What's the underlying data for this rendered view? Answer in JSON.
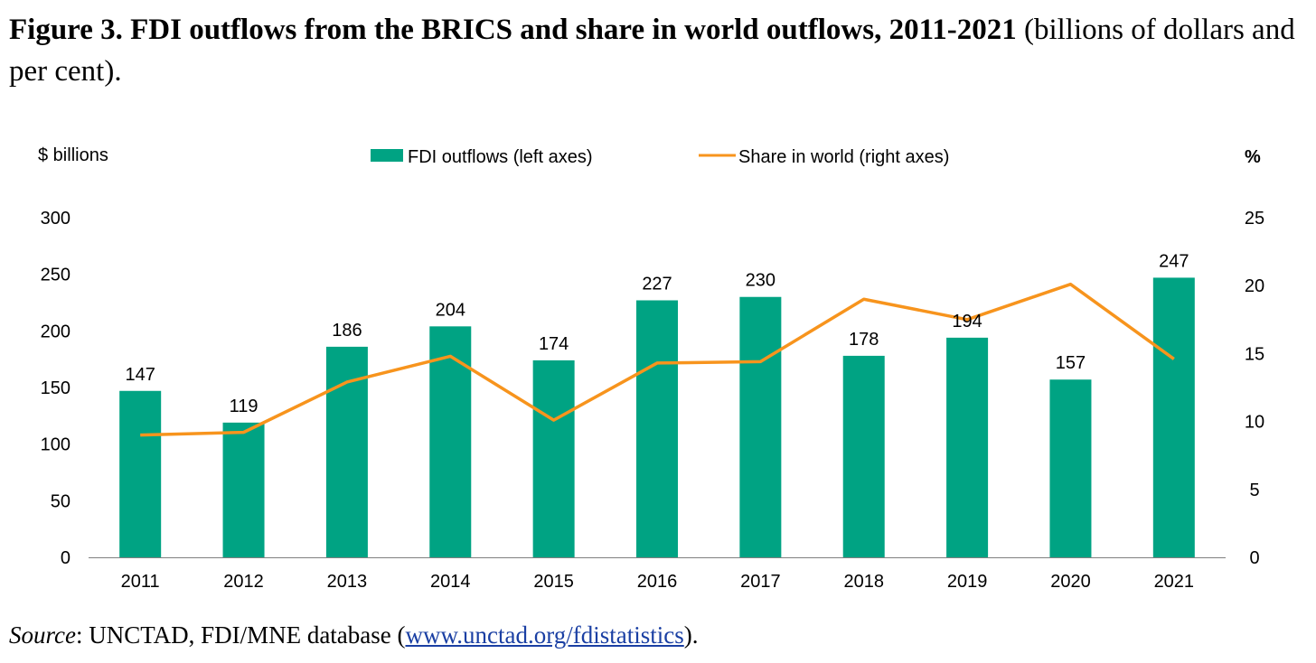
{
  "figure": {
    "title_bold": "Figure 3. FDI outflows from the BRICS and share in world outflows, 2011-2021",
    "title_rest": "(billions of dollars and per cent)."
  },
  "source": {
    "label": "Source",
    "text": ": UNCTAD, FDI/MNE database (",
    "link": "www.unctad.org/fdistatistics",
    "end": ")."
  },
  "colors": {
    "bars": "#00a383",
    "line": "#f7941d",
    "axis": "#808080"
  },
  "chart_data": {
    "type": "bar",
    "categories": [
      "2011",
      "2012",
      "2013",
      "2014",
      "2015",
      "2016",
      "2017",
      "2018",
      "2019",
      "2020",
      "2021"
    ],
    "series": [
      {
        "name": "FDI outflows (left axes)",
        "type": "bar",
        "axis": "left",
        "values": [
          147,
          119,
          186,
          204,
          174,
          227,
          230,
          178,
          194,
          157,
          247
        ]
      },
      {
        "name": "Share in world (right axes)",
        "type": "line",
        "axis": "right",
        "values": [
          9.0,
          9.2,
          12.9,
          14.8,
          10.1,
          14.3,
          14.4,
          19.0,
          17.5,
          20.1,
          14.6
        ]
      }
    ],
    "left_axis": {
      "label": "$ billions",
      "ylim": [
        0,
        300
      ],
      "ticks": [
        0,
        50,
        100,
        150,
        200,
        250,
        300
      ]
    },
    "right_axis": {
      "label": "%",
      "ylim": [
        0,
        25
      ],
      "ticks": [
        0,
        5,
        10,
        15,
        20,
        25
      ]
    },
    "data_labels": [
      "147",
      "119",
      "186",
      "204",
      "174",
      "227",
      "230",
      "178",
      "194",
      "157",
      "247"
    ],
    "legend": "top-center",
    "grid": false
  }
}
